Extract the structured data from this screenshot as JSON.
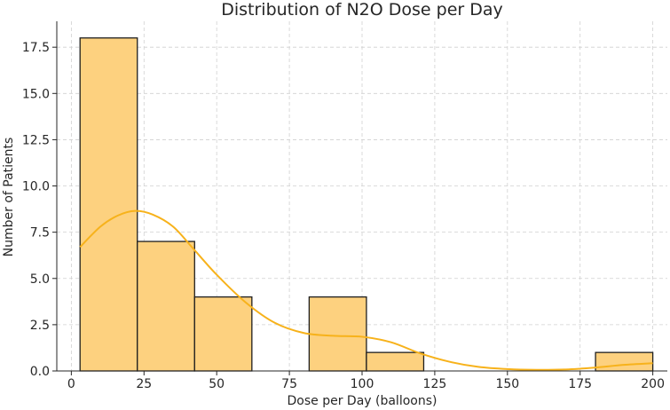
{
  "chart_data": {
    "type": "bar",
    "title": "Distribution of N2O Dose per Day",
    "xlabel": "Dose per Day (balloons)",
    "ylabel": "Number of Patients",
    "xlim": [
      -5,
      205
    ],
    "ylim": [
      0,
      18.9
    ],
    "x_ticks": [
      0,
      25,
      50,
      75,
      100,
      125,
      150,
      175,
      200
    ],
    "x_tick_labels": [
      "0",
      "25",
      "50",
      "75",
      "100",
      "125",
      "150",
      "175",
      "200"
    ],
    "y_ticks": [
      0,
      2.5,
      5,
      7.5,
      10,
      12.5,
      15,
      17.5
    ],
    "y_tick_labels": [
      "0.0",
      "2.5",
      "5.0",
      "7.5",
      "10.0",
      "12.5",
      "15.0",
      "17.5"
    ],
    "bins": [
      {
        "start": 3,
        "end": 22.7,
        "count": 18
      },
      {
        "start": 22.7,
        "end": 42.4,
        "count": 7
      },
      {
        "start": 42.4,
        "end": 62.1,
        "count": 4
      },
      {
        "start": 62.1,
        "end": 81.8,
        "count": 0
      },
      {
        "start": 81.8,
        "end": 101.5,
        "count": 4
      },
      {
        "start": 101.5,
        "end": 121.2,
        "count": 1
      },
      {
        "start": 121.2,
        "end": 140.9,
        "count": 0
      },
      {
        "start": 140.9,
        "end": 160.6,
        "count": 0
      },
      {
        "start": 160.6,
        "end": 180.3,
        "count": 0
      },
      {
        "start": 180.3,
        "end": 200,
        "count": 1
      }
    ],
    "kde": {
      "name": "density estimate",
      "x": [
        3,
        10,
        16,
        22,
        28,
        35,
        42,
        50,
        60,
        70,
        80,
        90,
        100,
        110,
        120,
        130,
        140,
        150,
        160,
        170,
        180,
        190,
        200
      ],
      "y": [
        6.7,
        7.8,
        8.4,
        8.65,
        8.45,
        7.8,
        6.6,
        5.2,
        3.7,
        2.6,
        2.05,
        1.9,
        1.85,
        1.55,
        0.95,
        0.5,
        0.22,
        0.1,
        0.06,
        0.08,
        0.18,
        0.33,
        0.42
      ]
    },
    "grid": true,
    "bar_color": "#fdd17f",
    "edge_color": "#1f1f1f",
    "kde_color": "#f7b21b"
  }
}
